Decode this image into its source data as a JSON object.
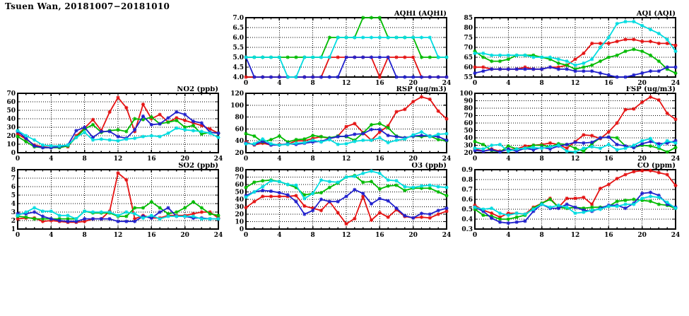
{
  "page_title": "Tsuen Wan, 20181007−20181010",
  "colors": {
    "red": "#e41212",
    "green": "#00bb00",
    "blue": "#2020cc",
    "cyan": "#00dce0"
  },
  "x_axis": {
    "min": 0,
    "max": 24,
    "major_ticks": [
      0,
      4,
      8,
      12,
      16,
      20,
      24
    ],
    "minor_tick_step": 1
  },
  "chart_data": [
    {
      "type": "line",
      "key": "aqhi",
      "title": "AQHI (AQHI)",
      "ylim": [
        4.0,
        7.0
      ],
      "y_ticks": [
        "4.0",
        "4.5",
        "5.0",
        "5.5",
        "6.0",
        "6.5",
        "7.0"
      ],
      "grid": true,
      "series": [
        {
          "color": "red",
          "values": [
            4,
            4,
            4,
            4,
            4,
            4,
            4,
            4,
            4,
            4,
            5,
            5,
            5,
            5,
            5,
            5,
            4,
            5,
            5,
            5,
            5,
            4,
            4,
            4,
            4
          ]
        },
        {
          "color": "green",
          "values": [
            5,
            5,
            5,
            5,
            5,
            5,
            5,
            5,
            5,
            5,
            6,
            6,
            6,
            6,
            7,
            7,
            7,
            6,
            6,
            6,
            6,
            5,
            5,
            5,
            5
          ]
        },
        {
          "color": "blue",
          "values": [
            5,
            4,
            4,
            4,
            4,
            4,
            4,
            4,
            4,
            4,
            4,
            4,
            5,
            5,
            5,
            5,
            5,
            5,
            4,
            4,
            4,
            4,
            4,
            4,
            4
          ]
        },
        {
          "color": "cyan",
          "values": [
            5,
            5,
            5,
            5,
            5,
            4,
            4,
            5,
            5,
            5,
            5,
            6,
            6,
            6,
            6,
            6,
            6,
            6,
            6,
            6,
            6,
            6,
            6,
            5,
            5
          ]
        }
      ]
    },
    {
      "type": "line",
      "key": "aqi",
      "title": "AQI (AQI)",
      "ylim": [
        55,
        85
      ],
      "y_ticks": [
        "55",
        "60",
        "65",
        "70",
        "75",
        "80",
        "85"
      ],
      "grid": true,
      "series": [
        {
          "color": "red",
          "values": [
            60,
            60,
            59,
            59,
            59,
            59,
            60,
            59,
            59,
            60,
            60,
            61,
            64,
            67,
            72,
            72,
            72,
            73,
            74,
            74,
            73,
            73,
            72,
            72,
            71
          ]
        },
        {
          "color": "green",
          "values": [
            68,
            65,
            63,
            63,
            64,
            66,
            66,
            66,
            65,
            64,
            62,
            61,
            59,
            60,
            61,
            63,
            65,
            66,
            68,
            69,
            68,
            66,
            63,
            59,
            57
          ]
        },
        {
          "color": "blue",
          "values": [
            57,
            58,
            59,
            59,
            59,
            59,
            59,
            59,
            59,
            60,
            59,
            59,
            58,
            58,
            58,
            57,
            56,
            55,
            55,
            56,
            57,
            58,
            58,
            60,
            60
          ]
        },
        {
          "color": "cyan",
          "values": [
            67,
            67,
            66,
            66,
            66,
            66,
            66,
            65,
            65,
            65,
            64,
            63,
            61,
            62,
            64,
            70,
            75,
            82,
            83,
            83,
            81,
            79,
            77,
            74,
            68
          ]
        }
      ]
    },
    {
      "type": "line",
      "key": "no2",
      "title": "NO2 (ppb)",
      "ylim": [
        0,
        70
      ],
      "y_ticks": [
        "0",
        "10",
        "20",
        "30",
        "40",
        "50",
        "60",
        "70"
      ],
      "grid": true,
      "series": [
        {
          "color": "red",
          "values": [
            22,
            16,
            9,
            7,
            6,
            8,
            7,
            20,
            29,
            39,
            26,
            48,
            65,
            53,
            25,
            57,
            40,
            45,
            36,
            41,
            38,
            35,
            32,
            28,
            23
          ]
        },
        {
          "color": "green",
          "values": [
            19,
            13,
            7,
            6,
            6,
            6,
            8,
            18,
            28,
            33,
            24,
            26,
            27,
            25,
            40,
            39,
            42,
            34,
            36,
            38,
            30,
            32,
            22,
            24,
            23
          ]
        },
        {
          "color": "blue",
          "values": [
            25,
            17,
            8,
            6,
            6,
            7,
            9,
            26,
            30,
            18,
            25,
            25,
            19,
            17,
            27,
            43,
            33,
            34,
            41,
            48,
            45,
            37,
            35,
            24,
            23
          ]
        },
        {
          "color": "cyan",
          "values": [
            26,
            20,
            15,
            9,
            8,
            8,
            9,
            18,
            24,
            15,
            16,
            15,
            14,
            16,
            17,
            19,
            20,
            19,
            23,
            29,
            27,
            26,
            25,
            23,
            18
          ]
        }
      ]
    },
    {
      "type": "line",
      "key": "rsp",
      "title": "RSP (ug/m3)",
      "ylim": [
        20,
        120
      ],
      "y_ticks": [
        "20",
        "40",
        "60",
        "80",
        "100",
        "120"
      ],
      "grid": true,
      "series": [
        {
          "color": "red",
          "values": [
            38,
            33,
            36,
            33,
            34,
            34,
            40,
            40,
            44,
            47,
            44,
            48,
            64,
            69,
            54,
            41,
            55,
            65,
            89,
            93,
            106,
            114,
            110,
            90,
            77
          ]
        },
        {
          "color": "green",
          "values": [
            52,
            48,
            38,
            42,
            48,
            38,
            42,
            43,
            49,
            47,
            45,
            48,
            47,
            41,
            53,
            67,
            69,
            62,
            48,
            45,
            48,
            47,
            48,
            42,
            40
          ]
        },
        {
          "color": "blue",
          "values": [
            36,
            34,
            39,
            33,
            33,
            35,
            34,
            36,
            38,
            39,
            44,
            47,
            48,
            51,
            52,
            59,
            59,
            49,
            47,
            45,
            48,
            49,
            48,
            47,
            41
          ]
        },
        {
          "color": "cyan",
          "values": [
            35,
            35,
            43,
            35,
            33,
            34,
            36,
            37,
            41,
            38,
            42,
            34,
            35,
            39,
            41,
            41,
            45,
            37,
            41,
            43,
            50,
            55,
            47,
            51,
            52
          ]
        }
      ]
    },
    {
      "type": "line",
      "key": "fsp",
      "title": "FSP (ug/m3)",
      "ylim": [
        20,
        100
      ],
      "y_ticks": [
        "20",
        "30",
        "40",
        "50",
        "60",
        "70",
        "80",
        "90",
        "100"
      ],
      "grid": true,
      "series": [
        {
          "color": "red",
          "values": [
            25,
            22,
            25,
            22,
            24,
            25,
            29,
            30,
            31,
            33,
            31,
            26,
            35,
            44,
            43,
            39,
            48,
            60,
            78,
            79,
            88,
            95,
            91,
            73,
            65
          ]
        },
        {
          "color": "green",
          "values": [
            35,
            31,
            23,
            21,
            29,
            25,
            26,
            30,
            30,
            28,
            32,
            31,
            26,
            22,
            32,
            40,
            41,
            40,
            29,
            27,
            30,
            29,
            26,
            21,
            27
          ]
        },
        {
          "color": "blue",
          "values": [
            23,
            22,
            24,
            21,
            25,
            22,
            26,
            24,
            27,
            25,
            29,
            31,
            34,
            33,
            34,
            40,
            41,
            31,
            29,
            27,
            32,
            35,
            32,
            33,
            36
          ]
        },
        {
          "color": "cyan",
          "values": [
            26,
            25,
            30,
            31,
            22,
            25,
            26,
            27,
            26,
            28,
            30,
            22,
            21,
            26,
            28,
            26,
            31,
            24,
            26,
            30,
            36,
            39,
            28,
            36,
            33
          ]
        }
      ]
    },
    {
      "type": "line",
      "key": "so2",
      "title": "SO2 (ppb)",
      "ylim": [
        1,
        8
      ],
      "y_ticks": [
        "1",
        "2",
        "3",
        "4",
        "5",
        "6",
        "7",
        "8"
      ],
      "grid": true,
      "series": [
        {
          "color": "red",
          "values": [
            2.2,
            2.3,
            2.3,
            1.9,
            2.0,
            1.9,
            1.8,
            1.8,
            1.9,
            2.2,
            2.2,
            3.1,
            7.6,
            6.8,
            2.2,
            2.6,
            2.3,
            2.3,
            2.6,
            2.6,
            2.6,
            2.8,
            3.0,
            3.0,
            2.3
          ]
        },
        {
          "color": "green",
          "values": [
            2.5,
            2.4,
            2.2,
            2.2,
            2.2,
            2.2,
            2.2,
            2.2,
            3.1,
            2.9,
            2.9,
            2.9,
            2.5,
            2.5,
            3.5,
            3.5,
            4.2,
            3.5,
            2.8,
            3.0,
            3.5,
            4.2,
            3.5,
            2.8,
            2.6
          ]
        },
        {
          "color": "blue",
          "values": [
            2.8,
            2.8,
            3.0,
            2.5,
            2.2,
            2.0,
            1.9,
            1.9,
            2.2,
            2.2,
            2.2,
            2.2,
            1.9,
            1.9,
            1.9,
            2.5,
            2.3,
            3.0,
            3.5,
            2.5,
            2.5,
            2.3,
            2.3,
            2.2,
            2.2
          ]
        },
        {
          "color": "cyan",
          "values": [
            2.6,
            3.0,
            3.5,
            3.1,
            3.1,
            2.6,
            2.6,
            2.2,
            3.1,
            3.0,
            3.0,
            3.0,
            2.6,
            3.0,
            2.8,
            2.3,
            2.6,
            2.2,
            2.5,
            2.5,
            2.5,
            2.5,
            2.2,
            2.2,
            2.2
          ]
        }
      ]
    },
    {
      "type": "line",
      "key": "o3",
      "title": "O3 (ppb)",
      "ylim": [
        0,
        80
      ],
      "y_ticks": [
        "0",
        "10",
        "20",
        "30",
        "40",
        "50",
        "60",
        "70",
        "80"
      ],
      "grid": true,
      "series": [
        {
          "color": "red",
          "values": [
            29,
            37,
            44,
            44,
            44,
            44,
            45,
            31,
            28,
            25,
            37,
            22,
            7,
            14,
            44,
            12,
            22,
            16,
            26,
            17,
            15,
            16,
            15,
            20,
            24
          ]
        },
        {
          "color": "green",
          "values": [
            56,
            63,
            65,
            66,
            64,
            60,
            56,
            46,
            48,
            49,
            56,
            62,
            70,
            72,
            63,
            64,
            54,
            58,
            59,
            52,
            55,
            55,
            55,
            50,
            45
          ]
        },
        {
          "color": "blue",
          "values": [
            45,
            50,
            52,
            51,
            49,
            46,
            37,
            20,
            25,
            40,
            37,
            37,
            44,
            53,
            48,
            34,
            41,
            38,
            28,
            18,
            15,
            21,
            20,
            25,
            28
          ]
        },
        {
          "color": "cyan",
          "values": [
            43,
            50,
            57,
            65,
            64,
            60,
            59,
            41,
            48,
            66,
            64,
            63,
            70,
            71,
            75,
            78,
            75,
            66,
            65,
            57,
            56,
            58,
            59,
            57,
            56
          ]
        }
      ]
    },
    {
      "type": "line",
      "key": "co",
      "title": "CO (ppm)",
      "ylim": [
        0.3,
        0.9
      ],
      "y_ticks": [
        "0.3",
        "0.4",
        "0.5",
        "0.6",
        "0.7",
        "0.8",
        "0.9"
      ],
      "grid": true,
      "series": [
        {
          "color": "red",
          "values": [
            0.54,
            0.49,
            0.46,
            0.42,
            0.46,
            0.46,
            0.45,
            0.52,
            0.56,
            0.61,
            0.52,
            0.61,
            0.61,
            0.62,
            0.55,
            0.71,
            0.75,
            0.81,
            0.85,
            0.88,
            0.89,
            0.89,
            0.87,
            0.85,
            0.74
          ]
        },
        {
          "color": "green",
          "values": [
            0.5,
            0.44,
            0.43,
            0.4,
            0.4,
            0.42,
            0.44,
            0.51,
            0.56,
            0.6,
            0.52,
            0.51,
            0.52,
            0.51,
            0.52,
            0.52,
            0.53,
            0.58,
            0.59,
            0.6,
            0.59,
            0.58,
            0.55,
            0.54,
            0.51
          ]
        },
        {
          "color": "blue",
          "values": [
            0.52,
            0.48,
            0.41,
            0.37,
            0.36,
            0.37,
            0.38,
            0.48,
            0.55,
            0.51,
            0.51,
            0.55,
            0.52,
            0.49,
            0.48,
            0.51,
            0.54,
            0.54,
            0.51,
            0.56,
            0.66,
            0.67,
            0.64,
            0.55,
            0.52
          ]
        },
        {
          "color": "cyan",
          "values": [
            0.52,
            0.5,
            0.51,
            0.46,
            0.44,
            0.46,
            0.45,
            0.5,
            0.55,
            0.52,
            0.54,
            0.52,
            0.46,
            0.47,
            0.49,
            0.5,
            0.53,
            0.53,
            0.55,
            0.55,
            0.61,
            0.63,
            0.62,
            0.57,
            0.51
          ]
        }
      ]
    }
  ]
}
